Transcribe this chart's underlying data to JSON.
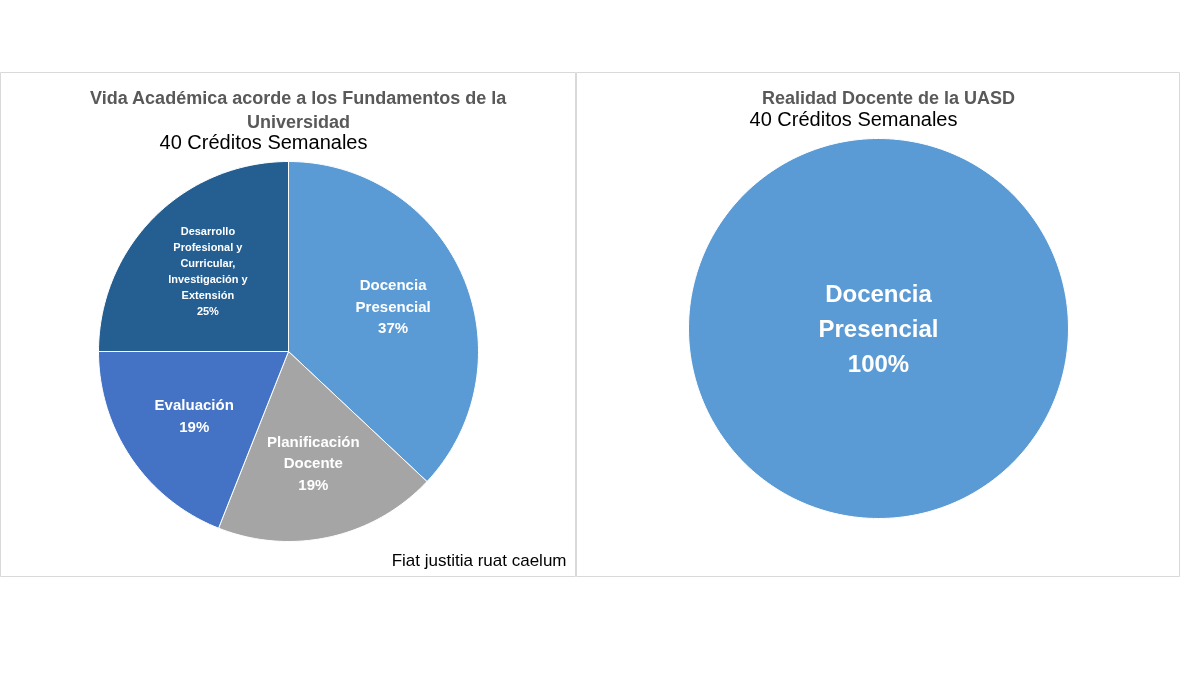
{
  "chart_data": [
    {
      "type": "pie",
      "title": "Vida Académica acorde a los Fundamentos de la Universidad",
      "subtitle": "40 Créditos Semanales",
      "categories": [
        "Docencia Presencial",
        "Planificación Docente",
        "Evaluación",
        "Desarrollo Profesional y Curricular, Investigación y Extensión"
      ],
      "values": [
        37,
        19,
        19,
        25
      ],
      "colors": [
        "#5b9bd5",
        "#a5a5a5",
        "#4472c4",
        "#255e91"
      ],
      "value_labels": [
        "37%",
        "19%",
        "19%",
        "25%"
      ],
      "annotations": [
        "Fiat justitia ruat caelum"
      ]
    },
    {
      "type": "pie",
      "title": "Realidad Docente de la UASD",
      "subtitle": "40 Créditos Semanales",
      "categories": [
        "Docencia Presencial"
      ],
      "values": [
        100
      ],
      "colors": [
        "#5b9bd5"
      ],
      "value_labels": [
        "100%"
      ]
    }
  ]
}
